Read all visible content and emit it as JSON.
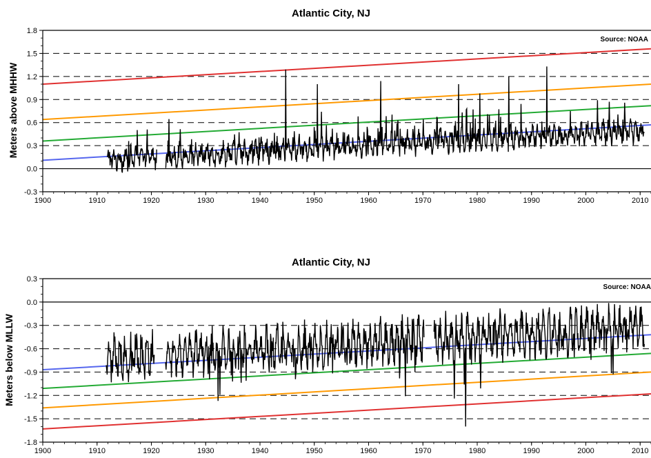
{
  "chart_data": [
    {
      "type": "line",
      "title": "Atlantic City, NJ",
      "ylabel": "Meters above MHHW",
      "xlabel": "",
      "source": "Source: NOAA",
      "xlim": [
        1900,
        2012
      ],
      "ylim": [
        -0.3,
        1.8
      ],
      "xticks": [
        "1900",
        "1910",
        "1920",
        "1930",
        "1940",
        "1950",
        "1960",
        "1970",
        "1980",
        "1990",
        "2000",
        "2010"
      ],
      "yticks": [
        "-0.3",
        "0.0",
        "0.3",
        "0.6",
        "0.9",
        "1.2",
        "1.5",
        "1.8"
      ],
      "grid_dashed_y": [
        0.3,
        0.6,
        0.9,
        1.2,
        1.5
      ],
      "zero_line": 0.0,
      "trend_lines": [
        {
          "color": "#e03030",
          "x": [
            1900,
            2012
          ],
          "y": [
            1.1,
            1.56
          ]
        },
        {
          "color": "#ff9900",
          "x": [
            1900,
            2012
          ],
          "y": [
            0.64,
            1.1
          ]
        },
        {
          "color": "#22aa33",
          "x": [
            1900,
            2012
          ],
          "y": [
            0.36,
            0.82
          ]
        },
        {
          "color": "#5566ee",
          "x": [
            1900,
            2012
          ],
          "y": [
            0.11,
            0.57
          ]
        }
      ],
      "series_record": {
        "x_start": 1911.9,
        "x_end": 2010.8,
        "gap": [
          1921.0,
          1922.6
        ],
        "base_start": 0.12,
        "base_end": 0.5,
        "seasonal_amp": 0.08
      },
      "spikes": [
        {
          "x": 1944.7,
          "y": 1.29
        },
        {
          "x": 1950.6,
          "y": 1.1
        },
        {
          "x": 1962.2,
          "y": 1.14
        },
        {
          "x": 1976.6,
          "y": 1.1
        },
        {
          "x": 1985.8,
          "y": 1.2
        },
        {
          "x": 1992.8,
          "y": 1.33
        },
        {
          "x": 1980.5,
          "y": 0.98
        }
      ]
    },
    {
      "type": "line",
      "title": "Atlantic City, NJ",
      "ylabel": "Meters below MLLW",
      "xlabel": "",
      "source": "Source: NOAA",
      "xlim": [
        1900,
        2012
      ],
      "ylim": [
        -1.8,
        0.3
      ],
      "xticks": [
        "1900",
        "1910",
        "1920",
        "1930",
        "1940",
        "1950",
        "1960",
        "1970",
        "1980",
        "1990",
        "2000",
        "2010"
      ],
      "yticks": [
        "-1.8",
        "-1.5",
        "-1.2",
        "-0.9",
        "-0.6",
        "-0.3",
        "0.0",
        "0.3"
      ],
      "grid_dashed_y": [
        -0.3,
        -0.6,
        -0.9,
        -1.2,
        -1.5
      ],
      "zero_line": 0.0,
      "trend_lines": [
        {
          "color": "#e03030",
          "x": [
            1900,
            2012
          ],
          "y": [
            -1.63,
            -1.18
          ]
        },
        {
          "color": "#ff9900",
          "x": [
            1900,
            2012
          ],
          "y": [
            -1.36,
            -0.9
          ]
        },
        {
          "color": "#22aa33",
          "x": [
            1900,
            2012
          ],
          "y": [
            -1.11,
            -0.66
          ]
        },
        {
          "color": "#5566ee",
          "x": [
            1900,
            2012
          ],
          "y": [
            -0.87,
            -0.42
          ]
        }
      ],
      "series_record": {
        "x_start": 1911.7,
        "x_end": 2010.8,
        "gap": [
          1920.6,
          1922.6
        ],
        "gap2": [
          1970.2,
          1972.0
        ],
        "base_start": -0.72,
        "base_end": -0.32,
        "seasonal_amp": 0.18
      },
      "spikes": [
        {
          "x": 1932.3,
          "y": -1.27
        },
        {
          "x": 1966.8,
          "y": -1.21
        },
        {
          "x": 1977.9,
          "y": -1.6
        },
        {
          "x": 1975.8,
          "y": -1.24
        },
        {
          "x": 1980.6,
          "y": -1.11
        },
        {
          "x": 2005.0,
          "y": -0.93
        }
      ]
    }
  ]
}
